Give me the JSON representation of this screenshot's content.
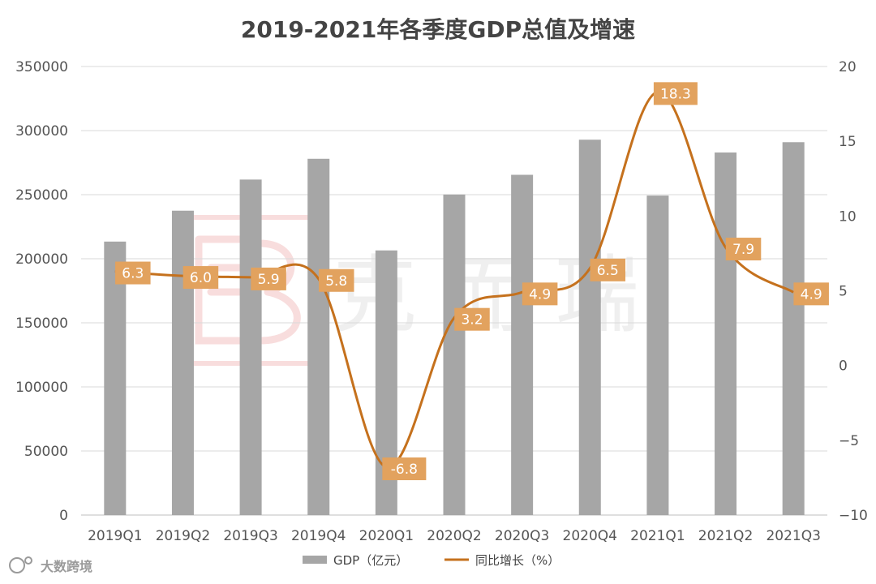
{
  "chart_data": {
    "type": "bar+line",
    "title": "2019-2021年各季度GDP总值及增速",
    "categories": [
      "2019Q1",
      "2019Q2",
      "2019Q3",
      "2019Q4",
      "2020Q1",
      "2020Q2",
      "2020Q3",
      "2020Q4",
      "2021Q1",
      "2021Q2",
      "2021Q3"
    ],
    "series": [
      {
        "name": "GDP（亿元）",
        "type": "bar",
        "axis": "left",
        "color": "#a6a6a6",
        "values": [
          213400,
          237500,
          261800,
          278000,
          206500,
          250100,
          265500,
          292900,
          249300,
          282900,
          290960
        ]
      },
      {
        "name": "同比增长（%）",
        "type": "line",
        "axis": "right",
        "color": "#c5711d",
        "values": [
          6.3,
          6.0,
          5.9,
          5.8,
          -6.8,
          3.2,
          4.9,
          6.5,
          18.3,
          7.9,
          4.9
        ],
        "labels": [
          "6.3",
          "6.0",
          "5.9",
          "5.8",
          "-6.8",
          "3.2",
          "4.9",
          "6.5",
          "18.3",
          "7.9",
          "4.9"
        ],
        "label_color": "#e2a25e"
      }
    ],
    "y_left": {
      "min": 0,
      "max": 350000,
      "step": 50000,
      "ticks": [
        "0",
        "50000",
        "100000",
        "150000",
        "200000",
        "250000",
        "300000",
        "350000"
      ]
    },
    "y_right": {
      "min": -10,
      "max": 20,
      "step": 5,
      "ticks": [
        "−10",
        "−5",
        "0",
        "5",
        "10",
        "15",
        "20"
      ]
    },
    "grid": true,
    "legend_position": "bottom"
  },
  "watermark": {
    "text": "克 而 瑞"
  },
  "brand": {
    "text": "大数跨境"
  }
}
